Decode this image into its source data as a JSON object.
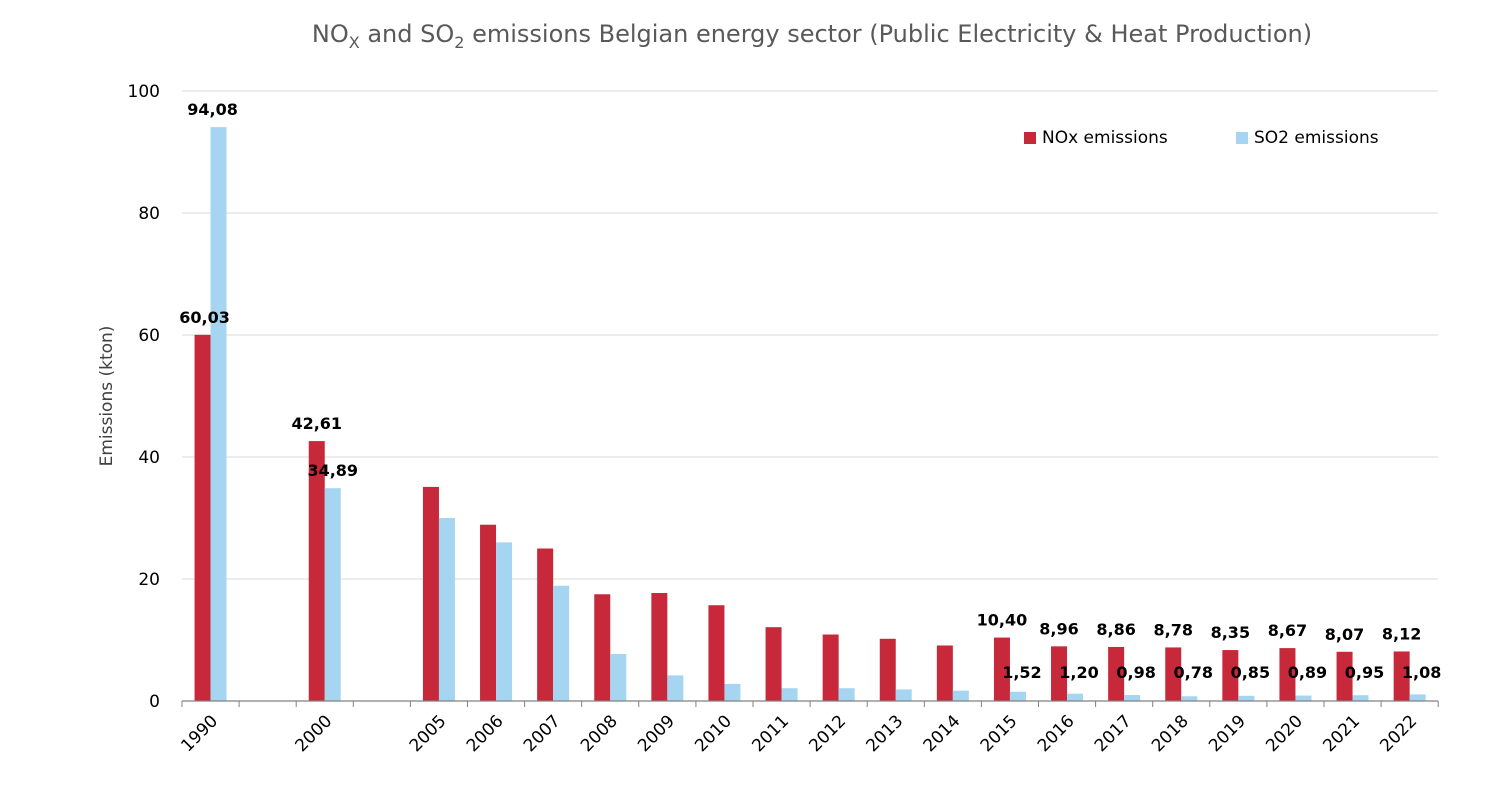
{
  "chart_data": {
    "type": "bar",
    "title_parts": [
      "NO",
      "X",
      " and SO",
      "2",
      " emissions Belgian energy sector (Public Electricity & Heat Production)"
    ],
    "xlabel": "",
    "ylabel": "Emissions (kton)",
    "ylim": [
      0,
      100
    ],
    "yticks": [
      0,
      20,
      40,
      60,
      80,
      100
    ],
    "grid": true,
    "legend_position": "top-right",
    "categories": [
      "1990",
      "2000",
      "2005",
      "2006",
      "2007",
      "2008",
      "2009",
      "2010",
      "2011",
      "2012",
      "2013",
      "2014",
      "2015",
      "2016",
      "2017",
      "2018",
      "2019",
      "2020",
      "2021",
      "2022"
    ],
    "slots": [
      0,
      2,
      4,
      5,
      6,
      7,
      8,
      9,
      10,
      11,
      12,
      13,
      14,
      15,
      16,
      17,
      18,
      19,
      20,
      21
    ],
    "series": [
      {
        "name": "NOx emissions",
        "color": "#c7283a",
        "values": [
          60.03,
          42.61,
          35.1,
          28.9,
          25.0,
          17.5,
          17.7,
          15.7,
          12.1,
          10.9,
          10.2,
          9.1,
          10.4,
          8.96,
          8.86,
          8.78,
          8.35,
          8.67,
          8.07,
          8.12
        ],
        "labels": [
          "60,03",
          "42,61",
          "",
          "",
          "",
          "",
          "",
          "",
          "",
          "",
          "",
          "",
          "10,40",
          "8,96",
          "8,86",
          "8,78",
          "8,35",
          "8,67",
          "8,07",
          "8,12"
        ]
      },
      {
        "name": "SO2 emissions",
        "color": "#a6d5f1",
        "values": [
          94.08,
          34.89,
          30.0,
          26.0,
          18.9,
          7.7,
          4.2,
          2.8,
          2.1,
          2.1,
          1.9,
          1.7,
          1.52,
          1.2,
          0.98,
          0.78,
          0.85,
          0.89,
          0.95,
          1.08
        ],
        "labels": [
          "94,08",
          "34,89",
          "",
          "",
          "",
          "",
          "",
          "",
          "",
          "",
          "",
          "",
          "1,52",
          "1,20",
          "0,98",
          "0,78",
          "0,85",
          "0,89",
          "0,95",
          "1,08"
        ]
      }
    ]
  }
}
